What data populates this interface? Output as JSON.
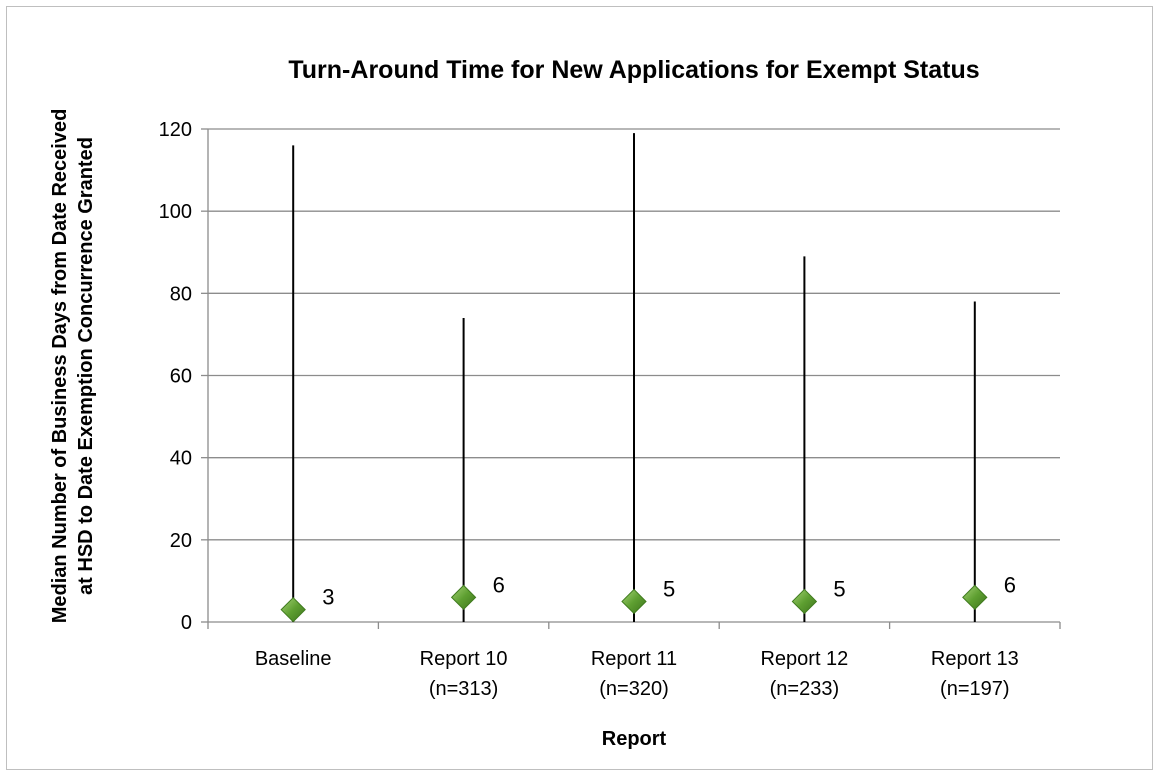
{
  "chart_data": {
    "type": "scatter",
    "title": "Turn-Around Time for New Applications for Exempt Status",
    "xlabel": "Report",
    "ylabel": [
      "Median Number of Business Days from Date Received",
      "at HSD to Date Exemption Concurrence Granted"
    ],
    "ylim": [
      0,
      120
    ],
    "yticks": [
      0,
      20,
      40,
      60,
      80,
      100,
      120
    ],
    "grid": true,
    "legend": "none",
    "categories": [
      {
        "line1": "Baseline",
        "line2": ""
      },
      {
        "line1": "Report 10",
        "line2": "(n=313)"
      },
      {
        "line1": "Report 11",
        "line2": "(n=320)"
      },
      {
        "line1": "Report 12",
        "line2": "(n=233)"
      },
      {
        "line1": "Report 13",
        "line2": "(n=197)"
      }
    ],
    "median": [
      3,
      6,
      5,
      5,
      6
    ],
    "high": [
      116,
      74,
      119,
      89,
      78
    ],
    "low": [
      0,
      0,
      0,
      0,
      0
    ],
    "data_labels": [
      "3",
      "6",
      "5",
      "5",
      "6"
    ],
    "colors": {
      "marker": "#5a9a2e",
      "marker_light": "#9ccc6a",
      "marker_dark": "#3f7a1e",
      "grid": "#8c8c8c",
      "range_line": "#000000"
    }
  }
}
